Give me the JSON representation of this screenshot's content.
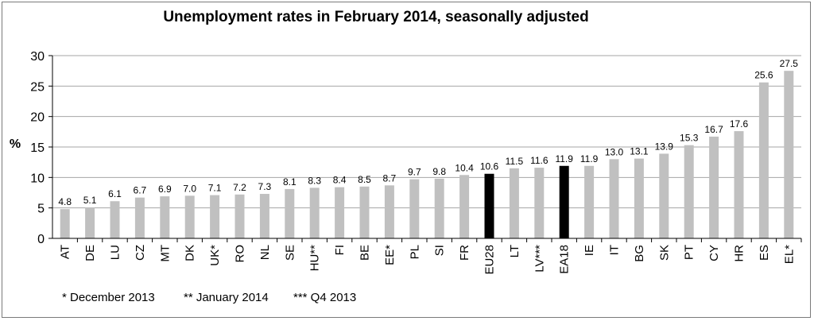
{
  "chart_data": {
    "type": "bar",
    "title": "Unemployment rates in February 2014, seasonally adjusted",
    "ylabel": "%",
    "xlabel": "",
    "ylim": [
      0,
      30
    ],
    "yticks": [
      "0",
      "5",
      "10",
      "15",
      "20",
      "25",
      "30"
    ],
    "grid": true,
    "categories": [
      "AT",
      "DE",
      "LU",
      "CZ",
      "MT",
      "DK",
      "UK*",
      "RO",
      "NL",
      "SE",
      "HU**",
      "FI",
      "BE",
      "EE*",
      "PL",
      "SI",
      "FR",
      "EU28",
      "LT",
      "LV***",
      "EA18",
      "IE",
      "IT",
      "BG",
      "SK",
      "PT",
      "CY",
      "HR",
      "ES",
      "EL*"
    ],
    "values": [
      4.8,
      5.1,
      6.1,
      6.7,
      6.9,
      7.0,
      7.1,
      7.2,
      7.3,
      8.1,
      8.3,
      8.4,
      8.5,
      8.7,
      9.7,
      9.8,
      10.4,
      10.6,
      11.5,
      11.6,
      11.9,
      11.9,
      13.0,
      13.1,
      13.9,
      15.3,
      16.7,
      17.6,
      25.6,
      27.5
    ],
    "value_labels": [
      "4.8",
      "5.1",
      "6.1",
      "6.7",
      "6.9",
      "7.0",
      "7.1",
      "7.2",
      "7.3",
      "8.1",
      "8.3",
      "8.4",
      "8.5",
      "8.7",
      "9.7",
      "9.8",
      "10.4",
      "10.6",
      "11.5",
      "11.6",
      "11.9",
      "11.9",
      "13.0",
      "13.1",
      "13.9",
      "15.3",
      "16.7",
      "17.6",
      "25.6",
      "27.5"
    ],
    "highlighted": [
      "EU28",
      "EA18"
    ],
    "colors": {
      "bar": "#c0c0c0",
      "highlight": "#000000",
      "grid": "#a6a6a6"
    },
    "footnotes": [
      "* December 2013",
      "** January 2014",
      "*** Q4 2013"
    ]
  }
}
